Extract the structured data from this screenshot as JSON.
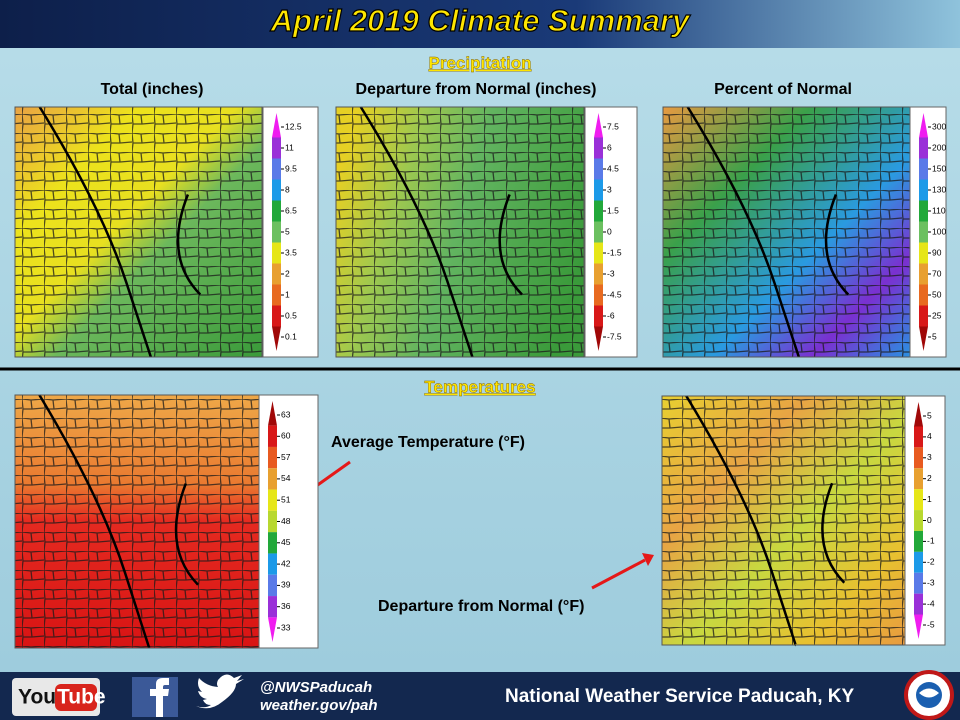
{
  "title": "April 2019 Climate Summary",
  "precipitation": {
    "heading": "Precipitation",
    "panels": [
      {
        "title": "Total (inches)",
        "scale": [
          "12.5",
          "11",
          "9.5",
          "8",
          "6.5",
          "5",
          "3.5",
          "2",
          "1",
          "0.5",
          "0.1"
        ]
      },
      {
        "title": "Departure from Normal (inches)",
        "scale": [
          "7.5",
          "6",
          "4.5",
          "3",
          "1.5",
          "0",
          "-1.5",
          "-3",
          "-4.5",
          "-6",
          "-7.5"
        ]
      },
      {
        "title": "Percent of Normal",
        "scale": [
          "300",
          "200",
          "150",
          "130",
          "110",
          "100",
          "90",
          "70",
          "50",
          "25",
          "5"
        ]
      }
    ]
  },
  "temperatures": {
    "heading": "Temperatures",
    "panels": [
      {
        "title": "Average Temperature (°F)",
        "scale": [
          "63",
          "60",
          "57",
          "54",
          "51",
          "48",
          "45",
          "42",
          "39",
          "36",
          "33"
        ]
      },
      {
        "title": "Departure from Normal (°F)",
        "scale": [
          "5",
          "4",
          "3",
          "2",
          "1",
          "0",
          "-1",
          "-2",
          "-3",
          "-4",
          "-5"
        ]
      }
    ]
  },
  "footer": {
    "youtube": [
      "You",
      "Tube"
    ],
    "handle": "@NWSPaducah",
    "website": "weather.gov/pah",
    "office": "National Weather Service Paducah, KY"
  }
}
